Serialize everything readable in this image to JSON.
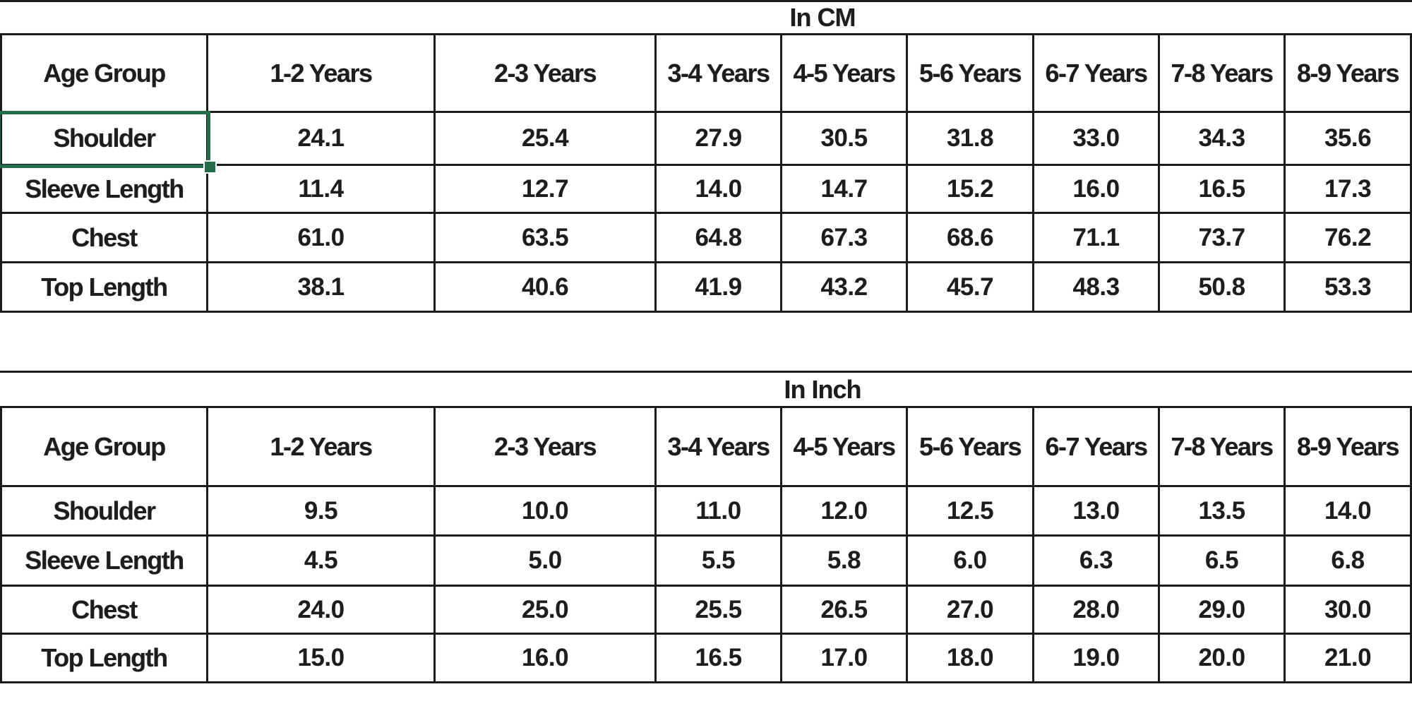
{
  "sheet": {
    "kind": "spreadsheet-size-chart",
    "colors": {
      "border": "#1b1b1b",
      "text": "#1d1d1d",
      "selection_green": "#256d4a",
      "background": "#ffffff"
    }
  },
  "tables": [
    {
      "title": "In CM",
      "columns": [
        "Age Group",
        "1-2 Years",
        "2-3 Years",
        "3-4 Years",
        "4-5 Years",
        "5-6 Years",
        "6-7 Years",
        "7-8 Years",
        "8-9 Years"
      ],
      "rows": [
        {
          "label": "Shoulder",
          "values": [
            "24.1",
            "25.4",
            "27.9",
            "30.5",
            "31.8",
            "33.0",
            "34.3",
            "35.6"
          ]
        },
        {
          "label": "Sleeve Length",
          "values": [
            "11.4",
            "12.7",
            "14.0",
            "14.7",
            "15.2",
            "16.0",
            "16.5",
            "17.3"
          ]
        },
        {
          "label": "Chest",
          "values": [
            "61.0",
            "63.5",
            "64.8",
            "67.3",
            "68.6",
            "71.1",
            "73.7",
            "76.2"
          ]
        },
        {
          "label": "Top Length",
          "values": [
            "38.1",
            "40.6",
            "41.9",
            "43.2",
            "45.7",
            "48.3",
            "50.8",
            "53.3"
          ]
        }
      ]
    },
    {
      "title": "In Inch",
      "columns": [
        "Age Group",
        "1-2 Years",
        "2-3 Years",
        "3-4 Years",
        "4-5 Years",
        "5-6 Years",
        "6-7 Years",
        "7-8 Years",
        "8-9 Years"
      ],
      "rows": [
        {
          "label": "Shoulder",
          "values": [
            "9.5",
            "10.0",
            "11.0",
            "12.0",
            "12.5",
            "13.0",
            "13.5",
            "14.0"
          ]
        },
        {
          "label": "Sleeve Length",
          "values": [
            "4.5",
            "5.0",
            "5.5",
            "5.8",
            "6.0",
            "6.3",
            "6.5",
            "6.8"
          ]
        },
        {
          "label": "Chest",
          "values": [
            "24.0",
            "25.0",
            "25.5",
            "26.5",
            "27.0",
            "28.0",
            "29.0",
            "30.0"
          ]
        },
        {
          "label": "Top Length",
          "values": [
            "15.0",
            "16.0",
            "16.5",
            "17.0",
            "18.0",
            "19.0",
            "20.0",
            "21.0"
          ]
        }
      ]
    }
  ],
  "selection": {
    "table": "In CM",
    "selected_row_label": "Shoulder",
    "has_fill_handle": true
  }
}
